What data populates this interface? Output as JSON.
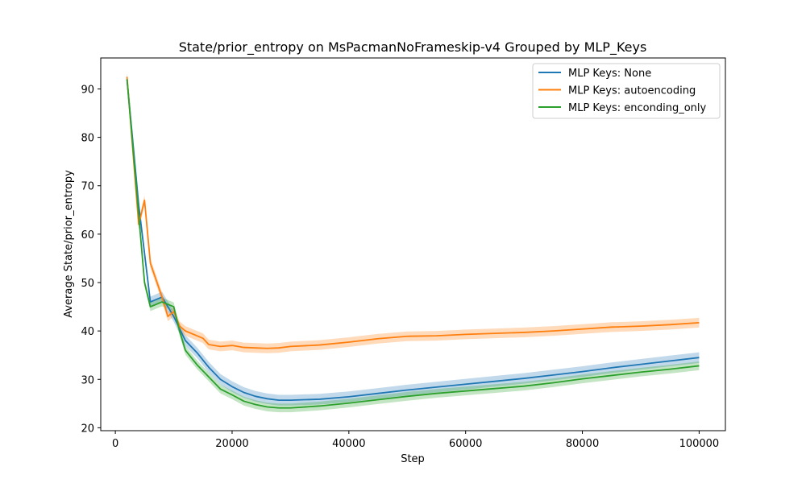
{
  "chart_data": {
    "type": "line",
    "title": "State/prior_entropy on MsPacmanNoFrameskip-v4 Grouped by MLP_Keys",
    "xlabel": "Step",
    "ylabel": "Average State/prior_entropy",
    "xlim": [
      -2500,
      104500
    ],
    "ylim": [
      19.4,
      96.4
    ],
    "xticks": [
      0,
      20000,
      40000,
      60000,
      80000,
      100000
    ],
    "yticks": [
      20,
      30,
      40,
      50,
      60,
      70,
      80,
      90
    ],
    "grid": false,
    "legend_position": "top-right",
    "band": "shaded confidence band around each line",
    "series": [
      {
        "name": "MLP Keys: None",
        "color": "#1f77b4",
        "band_halfwidth": 1.1,
        "points": [
          [
            2000,
            92
          ],
          [
            4000,
            66
          ],
          [
            6000,
            46
          ],
          [
            8000,
            47
          ],
          [
            10000,
            43
          ],
          [
            12000,
            38
          ],
          [
            14000,
            35.5
          ],
          [
            16000,
            32.5
          ],
          [
            18000,
            30
          ],
          [
            20000,
            28.5
          ],
          [
            22000,
            27.3
          ],
          [
            24000,
            26.5
          ],
          [
            26000,
            26
          ],
          [
            28000,
            25.7
          ],
          [
            30000,
            25.7
          ],
          [
            35000,
            25.9
          ],
          [
            40000,
            26.4
          ],
          [
            45000,
            27.1
          ],
          [
            50000,
            27.8
          ],
          [
            55000,
            28.4
          ],
          [
            60000,
            29
          ],
          [
            65000,
            29.6
          ],
          [
            70000,
            30.2
          ],
          [
            75000,
            30.9
          ],
          [
            80000,
            31.6
          ],
          [
            85000,
            32.4
          ],
          [
            90000,
            33.1
          ],
          [
            95000,
            33.8
          ],
          [
            100000,
            34.5
          ]
        ]
      },
      {
        "name": "MLP Keys: autoencoding",
        "color": "#ff7f0e",
        "band_halfwidth": 1.0,
        "points": [
          [
            2000,
            92.5
          ],
          [
            4000,
            62
          ],
          [
            5000,
            67
          ],
          [
            6000,
            54
          ],
          [
            8000,
            47
          ],
          [
            9000,
            43
          ],
          [
            10000,
            44
          ],
          [
            11000,
            41
          ],
          [
            12000,
            40
          ],
          [
            14000,
            39
          ],
          [
            15000,
            38.5
          ],
          [
            16000,
            37.2
          ],
          [
            18000,
            36.8
          ],
          [
            20000,
            37
          ],
          [
            22000,
            36.6
          ],
          [
            24000,
            36.5
          ],
          [
            26000,
            36.4
          ],
          [
            28000,
            36.5
          ],
          [
            30000,
            36.8
          ],
          [
            35000,
            37.1
          ],
          [
            40000,
            37.7
          ],
          [
            45000,
            38.4
          ],
          [
            50000,
            38.9
          ],
          [
            55000,
            39
          ],
          [
            60000,
            39.3
          ],
          [
            65000,
            39.5
          ],
          [
            70000,
            39.7
          ],
          [
            75000,
            40
          ],
          [
            80000,
            40.4
          ],
          [
            85000,
            40.8
          ],
          [
            90000,
            41
          ],
          [
            95000,
            41.3
          ],
          [
            100000,
            41.7
          ]
        ]
      },
      {
        "name": "MLP Keys: enconding_only",
        "color": "#2ca02c",
        "band_halfwidth": 0.9,
        "points": [
          [
            2000,
            92
          ],
          [
            4000,
            64
          ],
          [
            5000,
            50
          ],
          [
            6000,
            45
          ],
          [
            8000,
            46
          ],
          [
            10000,
            45
          ],
          [
            11000,
            40
          ],
          [
            12000,
            36
          ],
          [
            14000,
            33
          ],
          [
            16000,
            30.5
          ],
          [
            18000,
            28
          ],
          [
            20000,
            26.8
          ],
          [
            22000,
            25.5
          ],
          [
            24000,
            24.8
          ],
          [
            26000,
            24.3
          ],
          [
            28000,
            24.1
          ],
          [
            30000,
            24.1
          ],
          [
            35000,
            24.5
          ],
          [
            40000,
            25.1
          ],
          [
            45000,
            25.8
          ],
          [
            50000,
            26.5
          ],
          [
            55000,
            27.1
          ],
          [
            60000,
            27.6
          ],
          [
            65000,
            28.1
          ],
          [
            70000,
            28.6
          ],
          [
            75000,
            29.3
          ],
          [
            80000,
            30.1
          ],
          [
            85000,
            30.8
          ],
          [
            90000,
            31.5
          ],
          [
            95000,
            32.1
          ],
          [
            100000,
            32.8
          ]
        ]
      }
    ]
  }
}
